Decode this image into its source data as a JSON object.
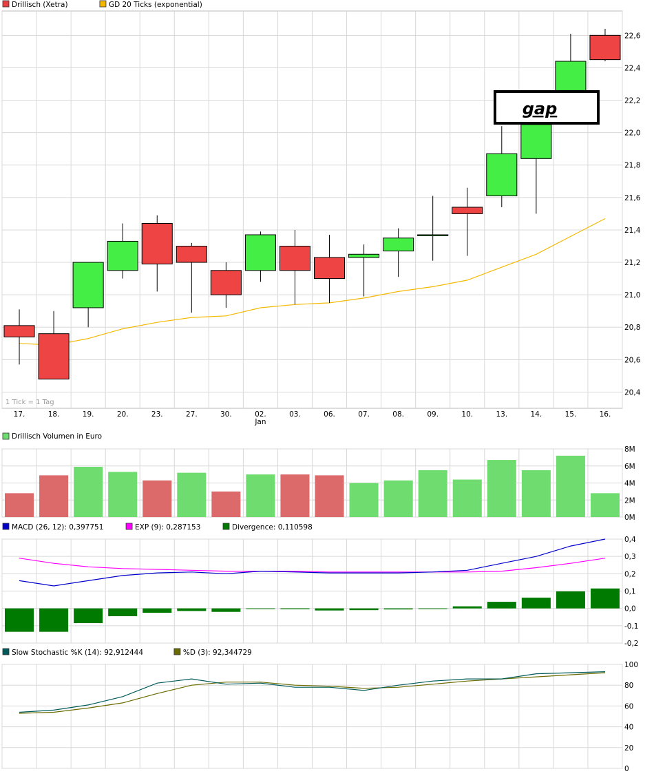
{
  "chart_data": {
    "type": "candlestick",
    "x_labels": [
      "17.",
      "18.",
      "19.",
      "20.",
      "23.",
      "27.",
      "30.",
      "02.",
      "03.",
      "06.",
      "07.",
      "08.",
      "09.",
      "10.",
      "13.",
      "14.",
      "15.",
      "16."
    ],
    "x_sublabel": "Jan",
    "x_sublabel_index": 7,
    "price": {
      "legend": [
        {
          "name": "Drillisch (Xetra)",
          "color": "#e84040"
        },
        {
          "name": "GD 20 Ticks (exponential)",
          "color": "#f5b800"
        }
      ],
      "ylim": [
        20.3,
        22.75
      ],
      "yticks": [
        20.4,
        20.6,
        20.8,
        21.0,
        21.2,
        21.4,
        21.6,
        21.8,
        22.0,
        22.2,
        22.4,
        22.6
      ],
      "ytick_labels": [
        "20,4",
        "20,6",
        "20,8",
        "21,0",
        "21,2",
        "21,4",
        "21,6",
        "21,8",
        "22,0",
        "22,2",
        "22,4",
        "22,6"
      ],
      "candles": [
        {
          "o": 20.81,
          "h": 20.91,
          "l": 20.57,
          "c": 20.74
        },
        {
          "o": 20.76,
          "h": 20.9,
          "l": 20.48,
          "c": 20.48
        },
        {
          "o": 20.92,
          "h": 21.2,
          "l": 20.8,
          "c": 21.2
        },
        {
          "o": 21.15,
          "h": 21.44,
          "l": 21.1,
          "c": 21.33
        },
        {
          "o": 21.44,
          "h": 21.49,
          "l": 21.02,
          "c": 21.19
        },
        {
          "o": 21.3,
          "h": 21.32,
          "l": 20.89,
          "c": 21.2
        },
        {
          "o": 21.15,
          "h": 21.2,
          "l": 20.92,
          "c": 21.0
        },
        {
          "o": 21.15,
          "h": 21.39,
          "l": 21.08,
          "c": 21.37
        },
        {
          "o": 21.3,
          "h": 21.4,
          "l": 20.94,
          "c": 21.15
        },
        {
          "o": 21.23,
          "h": 21.37,
          "l": 20.95,
          "c": 21.1
        },
        {
          "o": 21.23,
          "h": 21.31,
          "l": 20.99,
          "c": 21.25
        },
        {
          "o": 21.27,
          "h": 21.41,
          "l": 21.11,
          "c": 21.35
        },
        {
          "o": 21.37,
          "h": 21.61,
          "l": 21.21,
          "c": 21.37
        },
        {
          "o": 21.54,
          "h": 21.66,
          "l": 21.24,
          "c": 21.5
        },
        {
          "o": 21.61,
          "h": 22.04,
          "l": 21.54,
          "c": 21.87
        },
        {
          "o": 21.84,
          "h": 22.05,
          "l": 21.5,
          "c": 22.05
        },
        {
          "o": 22.26,
          "h": 22.61,
          "l": 22.24,
          "c": 22.44
        },
        {
          "o": 22.6,
          "h": 22.64,
          "l": 22.44,
          "c": 22.45
        }
      ],
      "ema20": [
        20.7,
        20.69,
        20.73,
        20.79,
        20.83,
        20.86,
        20.87,
        20.92,
        20.94,
        20.95,
        20.98,
        21.02,
        21.05,
        21.09,
        21.17,
        21.25,
        21.36,
        21.47
      ],
      "note": "1 Tick = 1 Tag",
      "annotation": "gap"
    },
    "volume": {
      "legend": "Drillisch Volumen in Euro",
      "ylim": [
        0,
        8
      ],
      "yticks": [
        0,
        2,
        4,
        6,
        8
      ],
      "ytick_labels": [
        "0M",
        "2M",
        "4M",
        "6M",
        "8M"
      ],
      "values": [
        2.8,
        4.9,
        5.9,
        5.3,
        4.3,
        5.2,
        3.0,
        5.0,
        5.0,
        4.9,
        4.0,
        4.3,
        5.5,
        4.4,
        6.7,
        5.5,
        7.2,
        2.8
      ],
      "up": [
        false,
        false,
        true,
        true,
        false,
        true,
        false,
        true,
        false,
        false,
        true,
        true,
        true,
        true,
        true,
        true,
        true,
        true
      ],
      "colors": {
        "up": "#6edc6e",
        "down": "#dc6a6a"
      }
    },
    "macd": {
      "legend": [
        {
          "name": "MACD (26, 12): 0,397751",
          "color": "#0000cc"
        },
        {
          "name": "EXP (9): 0,287153",
          "color": "#ff00ff"
        },
        {
          "name": "Divergence: 0,110598",
          "color": "#007a00"
        }
      ],
      "ylim": [
        -0.2,
        0.4
      ],
      "yticks": [
        -0.2,
        -0.1,
        0.0,
        0.1,
        0.2,
        0.3,
        0.4
      ],
      "ytick_labels": [
        "-0,2",
        "-0,1",
        "0,0",
        "0,1",
        "0,2",
        "0,3",
        "0,4"
      ],
      "macd": [
        0.16,
        0.13,
        0.16,
        0.19,
        0.205,
        0.21,
        0.2,
        0.215,
        0.21,
        0.205,
        0.205,
        0.205,
        0.21,
        0.22,
        0.26,
        0.3,
        0.36,
        0.4
      ],
      "signal": [
        0.29,
        0.26,
        0.24,
        0.23,
        0.225,
        0.22,
        0.215,
        0.215,
        0.215,
        0.21,
        0.21,
        0.21,
        0.21,
        0.21,
        0.215,
        0.235,
        0.26,
        0.29
      ],
      "divergence": [
        -0.135,
        -0.135,
        -0.085,
        -0.045,
        -0.025,
        -0.015,
        -0.02,
        -0.003,
        -0.005,
        -0.012,
        -0.01,
        -0.006,
        -0.002,
        0.012,
        0.038,
        0.062,
        0.098,
        0.115
      ]
    },
    "stochastic": {
      "legend": [
        {
          "name": "Slow Stochastic %K (14): 92,912444",
          "color": "#005a5a"
        },
        {
          "name": "%D (3): 92,344729",
          "color": "#6b6b00"
        }
      ],
      "ylim": [
        0,
        100
      ],
      "yticks": [
        0,
        20,
        40,
        60,
        80,
        100
      ],
      "ytick_labels": [
        "0",
        "20",
        "40",
        "60",
        "80",
        "100"
      ],
      "k": [
        54,
        56,
        61,
        69,
        82,
        86,
        81,
        82,
        78,
        78,
        75,
        80,
        84,
        86,
        86,
        91,
        92,
        93
      ],
      "d": [
        53,
        54,
        58,
        63,
        72,
        80,
        83,
        83,
        80,
        79,
        77,
        78,
        81,
        84,
        86,
        88,
        90,
        92
      ]
    }
  },
  "colors": {
    "up_candle": "#44ee44",
    "down_candle": "#ee4444",
    "ema": "#f5b800",
    "grid": "#d8d8d8",
    "frame": "#bbbbbb"
  }
}
